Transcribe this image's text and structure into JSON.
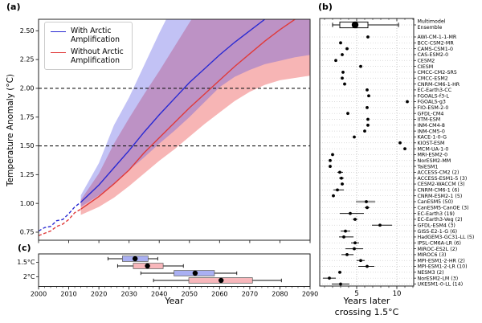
{
  "titles": {
    "a": "(a)",
    "b": "(b)",
    "c": "(c)"
  },
  "colors": {
    "with_aa_line": "#2a2ad2",
    "without_aa_line": "#e03a3a",
    "with_aa_band": "rgba(80,80,225,0.35)",
    "without_aa_band": "rgba(238,90,90,0.45)",
    "threshold_line": "#1a1a1a",
    "spine": "#222222",
    "grid": "#c4c4c4"
  },
  "chart_data": [
    {
      "type": "line",
      "title": "(a)",
      "ylabel": "Temperature Anomaly (°C)",
      "xlim": [
        2000,
        2090
      ],
      "ylim": [
        0.68,
        2.6
      ],
      "yticks": [
        0.75,
        1.0,
        1.25,
        1.5,
        1.75,
        2.0,
        2.25,
        2.5
      ],
      "xticks": [
        2000,
        2010,
        2020,
        2030,
        2040,
        2050,
        2060,
        2070,
        2080,
        2090
      ],
      "thresholds": [
        1.5,
        2.0
      ],
      "legend": [
        {
          "label": "With Arctic Amplification",
          "color": "#2a2ad2"
        },
        {
          "label": "Without Arctic Amplification",
          "color": "#e03a3a"
        }
      ],
      "series": [
        {
          "name": "With Arctic Amplification (historical)",
          "style": "dashed",
          "color": "#2a2ad2",
          "x": [
            2000,
            2002,
            2004,
            2006,
            2008,
            2010,
            2012,
            2014
          ],
          "y": [
            0.76,
            0.79,
            0.8,
            0.85,
            0.86,
            0.91,
            0.97,
            1.01
          ]
        },
        {
          "name": "Without Arctic Amplification (historical)",
          "style": "dashed",
          "color": "#e03a3a",
          "x": [
            2000,
            2002,
            2004,
            2006,
            2008,
            2010,
            2012,
            2014
          ],
          "y": [
            0.72,
            0.74,
            0.76,
            0.8,
            0.82,
            0.86,
            0.92,
            0.95
          ]
        },
        {
          "name": "With Arctic Amplification (mean projection)",
          "style": "solid",
          "color": "#2a2ad2",
          "x": [
            2014,
            2020,
            2025,
            2030,
            2035,
            2040,
            2045,
            2050,
            2055,
            2060,
            2065,
            2070,
            2075,
            2080,
            2085,
            2090
          ],
          "y": [
            1.01,
            1.16,
            1.31,
            1.46,
            1.62,
            1.77,
            1.91,
            2.05,
            2.17,
            2.29,
            2.4,
            2.5,
            2.6,
            2.69,
            2.78,
            2.87
          ]
        },
        {
          "name": "Without Arctic Amplification (mean projection)",
          "style": "solid",
          "color": "#e03a3a",
          "x": [
            2014,
            2020,
            2025,
            2030,
            2035,
            2040,
            2045,
            2050,
            2055,
            2060,
            2065,
            2070,
            2075,
            2080,
            2085,
            2090
          ],
          "y": [
            0.95,
            1.06,
            1.17,
            1.29,
            1.44,
            1.57,
            1.7,
            1.83,
            1.95,
            2.07,
            2.19,
            2.3,
            2.41,
            2.51,
            2.6,
            2.69
          ]
        }
      ],
      "bands": [
        {
          "name": "Without Arctic Amplification model range",
          "color": "rgba(238,90,90,0.45)",
          "x": [
            2014,
            2020,
            2025,
            2030,
            2035,
            2040,
            2045,
            2050,
            2055,
            2060,
            2065,
            2070,
            2075,
            2080,
            2085,
            2090
          ],
          "upper": [
            1.03,
            1.26,
            1.52,
            1.74,
            1.95,
            2.15,
            2.36,
            2.57,
            2.77,
            2.95,
            3.05,
            3.12,
            3.18,
            3.22,
            3.26,
            3.3
          ],
          "lower": [
            0.9,
            0.97,
            1.05,
            1.15,
            1.26,
            1.37,
            1.47,
            1.58,
            1.69,
            1.79,
            1.89,
            1.97,
            2.03,
            2.07,
            2.09,
            2.11
          ]
        },
        {
          "name": "With Arctic Amplification model range",
          "color": "rgba(80,80,225,0.35)",
          "x": [
            2014,
            2020,
            2025,
            2030,
            2035,
            2040,
            2045,
            2050,
            2055,
            2060,
            2065,
            2070,
            2075,
            2080,
            2085,
            2090
          ],
          "upper": [
            1.07,
            1.35,
            1.68,
            1.92,
            2.2,
            2.48,
            2.74,
            2.95,
            3.1,
            3.2,
            3.26,
            3.3,
            3.33,
            3.35,
            3.36,
            3.37
          ],
          "lower": [
            0.97,
            1.07,
            1.17,
            1.29,
            1.4,
            1.52,
            1.63,
            1.75,
            1.88,
            2.01,
            2.1,
            2.16,
            2.21,
            2.24,
            2.27,
            2.29
          ]
        }
      ]
    },
    {
      "type": "scatter",
      "title": "(b)",
      "xlabel_line1": "Years later",
      "xlabel_line2": "crossing 1.5°C",
      "xlim": [
        0.4,
        12.1
      ],
      "xticks": [
        5,
        10
      ],
      "gridlines": [
        5,
        10
      ],
      "ensemble": {
        "label_line1": "Multimodel",
        "label_line2": "Ensemble",
        "median": 4.8,
        "q1": 2.9,
        "q3": 6.4,
        "whisker_low": 2.0,
        "whisker_high": 10.2
      },
      "models": [
        {
          "name": "AWI-CM-1-1-MR",
          "value": 6.4
        },
        {
          "name": "BCC-CSM2-MR",
          "value": 3.0
        },
        {
          "name": "CAMS-CSM1-0",
          "value": 3.8
        },
        {
          "name": "CAS-ESM2-0",
          "value": 3.2
        },
        {
          "name": "CESM2",
          "value": 2.4
        },
        {
          "name": "CIESM",
          "value": 5.5
        },
        {
          "name": "CMCC-CM2-SR5",
          "value": 3.3
        },
        {
          "name": "CMCC-ESM2",
          "value": 3.2
        },
        {
          "name": "CNRM-CM6-1-HR",
          "value": 3.5
        },
        {
          "name": "EC-Earth3-CC",
          "value": 6.3
        },
        {
          "name": "FGOALS-f3-L",
          "value": 6.5
        },
        {
          "name": "FGOALS-g3",
          "value": 11.3
        },
        {
          "name": "FIO-ESM-2-0",
          "value": 6.3
        },
        {
          "name": "GFDL-CM4",
          "value": 3.9
        },
        {
          "name": "IITM-ESM",
          "value": 6.4
        },
        {
          "name": "INM-CM4-8",
          "value": 6.4
        },
        {
          "name": "INM-CM5-0",
          "value": 6.0
        },
        {
          "name": "KACE-1-0-G",
          "value": 4.7
        },
        {
          "name": "KIOST-ESM",
          "value": 10.4
        },
        {
          "name": "MCM-UA-1-0",
          "value": 11.0
        },
        {
          "name": "MRI-ESM2-0",
          "value": 2.0
        },
        {
          "name": "NorESM2-MM",
          "value": 1.7
        },
        {
          "name": "TaiESM1",
          "value": 1.7
        },
        {
          "name": "ACCESS-CM2 (2)",
          "value": 2.9,
          "low": 2.6,
          "high": 3.3
        },
        {
          "name": "ACCESS-ESM1-5 (3)",
          "value": 3.1,
          "low": 2.8,
          "high": 3.4
        },
        {
          "name": "CESM2-WACCM (3)",
          "value": 3.2,
          "low": 3.0,
          "high": 3.4
        },
        {
          "name": "CNRM-CM6-1 (6)",
          "value": 2.6,
          "low": 2.1,
          "high": 3.4
        },
        {
          "name": "CNRM-ESM2-1 (5)",
          "value": 2.1,
          "low": 1.9,
          "high": 2.3
        },
        {
          "name": "CanESM5 (50)",
          "value": 6.2,
          "low": 4.9,
          "high": 7.3,
          "thick": true
        },
        {
          "name": "CanESM5-CanOE (3)",
          "value": 6.3,
          "low": 6.0,
          "high": 6.6
        },
        {
          "name": "EC-Earth3 (19)",
          "value": 4.2,
          "low": 2.9,
          "high": 5.9
        },
        {
          "name": "EC-Earth3-Veg (2)",
          "value": 4.8,
          "low": 4.5,
          "high": 5.1
        },
        {
          "name": "GFDL-ESM4 (3)",
          "value": 7.9,
          "low": 6.9,
          "high": 9.4
        },
        {
          "name": "GISS-E2-1-G (6)",
          "value": 3.6,
          "low": 3.0,
          "high": 4.2
        },
        {
          "name": "HadGEM3-GC31-LL (5)",
          "value": 3.4,
          "low": 2.8,
          "high": 4.6
        },
        {
          "name": "IPSL-CM6A-LR (6)",
          "value": 4.8,
          "low": 4.3,
          "high": 5.3
        },
        {
          "name": "MIROC-ES2L (2)",
          "value": 4.7,
          "low": 3.6,
          "high": 5.8
        },
        {
          "name": "MIROC6 (3)",
          "value": 3.8,
          "low": 3.1,
          "high": 4.6
        },
        {
          "name": "MPI-ESM1-2-HR (2)",
          "value": 5.5,
          "low": 5.0,
          "high": 6.0
        },
        {
          "name": "MPI-ESM1-2-LR (10)",
          "value": 6.3,
          "low": 5.2,
          "high": 7.2
        },
        {
          "name": "NESM3 (2)",
          "value": 2.9,
          "low": 2.7,
          "high": 3.1
        },
        {
          "name": "NorESM2-LM (3)",
          "value": 1.6,
          "low": 0.8,
          "high": 2.4
        },
        {
          "name": "UKESM1-0-LL (14)",
          "value": 3.0,
          "low": 1.9,
          "high": 4.1
        }
      ]
    },
    {
      "type": "boxplot",
      "title": "(c)",
      "xlabel": "Year",
      "xlim": [
        2000,
        2090
      ],
      "xticks": [
        2000,
        2010,
        2020,
        2030,
        2040,
        2050,
        2060,
        2070,
        2080,
        2090
      ],
      "rows": [
        {
          "label": "1.5°C",
          "boxes": [
            {
              "series": "With Arctic Amplification",
              "color": "#a9aff2",
              "whisker_low": 2023.0,
              "q1": 2027.8,
              "median": 2032.0,
              "q3": 2036.3,
              "whisker_high": 2039.5
            },
            {
              "series": "Without Arctic Amplification",
              "color": "#f8b7bb",
              "whisker_low": 2026.2,
              "q1": 2031.4,
              "median": 2036.1,
              "q3": 2041.3,
              "whisker_high": 2048.0
            }
          ]
        },
        {
          "label": "2°C",
          "boxes": [
            {
              "series": "With Arctic Amplification",
              "color": "#a9aff2",
              "whisker_low": 2033.9,
              "q1": 2044.9,
              "median": 2051.9,
              "q3": 2058.3,
              "whisker_high": 2065.7
            },
            {
              "series": "Without Arctic Amplification",
              "color": "#f8b7bb",
              "whisker_low": 2038.1,
              "q1": 2049.8,
              "median": 2060.5,
              "q3": 2070.9,
              "whisker_high": 2080.5
            }
          ]
        }
      ]
    }
  ]
}
